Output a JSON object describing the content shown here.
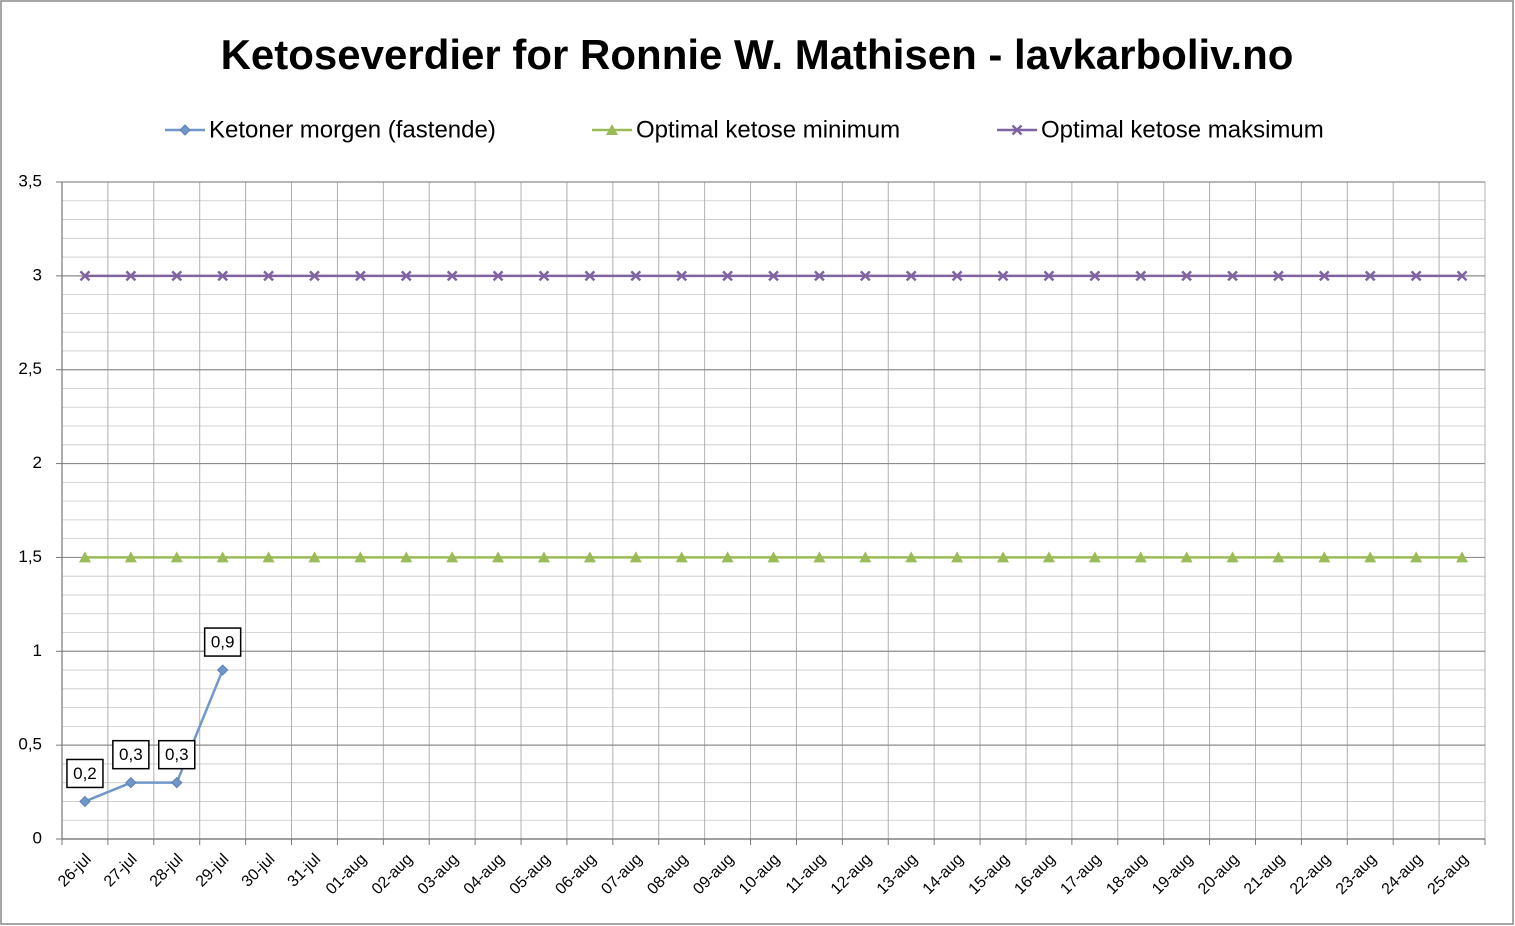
{
  "chart_data": {
    "type": "line",
    "title": "Ketoseverdier for Ronnie W. Mathisen - lavkarboliv.no",
    "categories": [
      "26-jul",
      "27-jul",
      "28-jul",
      "29-jul",
      "30-jul",
      "31-jul",
      "01-aug",
      "02-aug",
      "03-aug",
      "04-aug",
      "05-aug",
      "06-aug",
      "07-aug",
      "08-aug",
      "09-aug",
      "10-aug",
      "11-aug",
      "12-aug",
      "13-aug",
      "14-aug",
      "15-aug",
      "16-aug",
      "17-aug",
      "18-aug",
      "19-aug",
      "20-aug",
      "21-aug",
      "22-aug",
      "23-aug",
      "24-aug",
      "25-aug"
    ],
    "series": [
      {
        "name": "Ketoner morgen (fastende)",
        "color": "#7197c9",
        "marker": "diamond",
        "values": [
          0.2,
          0.3,
          0.3,
          0.9,
          null,
          null,
          null,
          null,
          null,
          null,
          null,
          null,
          null,
          null,
          null,
          null,
          null,
          null,
          null,
          null,
          null,
          null,
          null,
          null,
          null,
          null,
          null,
          null,
          null,
          null,
          null
        ],
        "value_labels": [
          "0,2",
          "0,3",
          "0,3",
          "0,9",
          null,
          null,
          null,
          null,
          null,
          null,
          null,
          null,
          null,
          null,
          null,
          null,
          null,
          null,
          null,
          null,
          null,
          null,
          null,
          null,
          null,
          null,
          null,
          null,
          null,
          null,
          null
        ]
      },
      {
        "name": "Optimal ketose minimum",
        "color": "#9bbb59",
        "marker": "triangle",
        "values": [
          1.5,
          1.5,
          1.5,
          1.5,
          1.5,
          1.5,
          1.5,
          1.5,
          1.5,
          1.5,
          1.5,
          1.5,
          1.5,
          1.5,
          1.5,
          1.5,
          1.5,
          1.5,
          1.5,
          1.5,
          1.5,
          1.5,
          1.5,
          1.5,
          1.5,
          1.5,
          1.5,
          1.5,
          1.5,
          1.5,
          1.5
        ]
      },
      {
        "name": "Optimal ketose maksimum",
        "color": "#8064a2",
        "marker": "x",
        "values": [
          3,
          3,
          3,
          3,
          3,
          3,
          3,
          3,
          3,
          3,
          3,
          3,
          3,
          3,
          3,
          3,
          3,
          3,
          3,
          3,
          3,
          3,
          3,
          3,
          3,
          3,
          3,
          3,
          3,
          3,
          3
        ]
      }
    ],
    "ylim": [
      0,
      3.5
    ],
    "yticks": [
      0,
      {
        "value": 0.5,
        "label": "0,5"
      },
      1,
      {
        "value": 1.5,
        "label": "1,5"
      },
      2,
      {
        "value": 2.5,
        "label": "2,5"
      },
      3,
      {
        "value": 3.5,
        "label": "3,5"
      }
    ],
    "grid": true,
    "legend": "top"
  }
}
